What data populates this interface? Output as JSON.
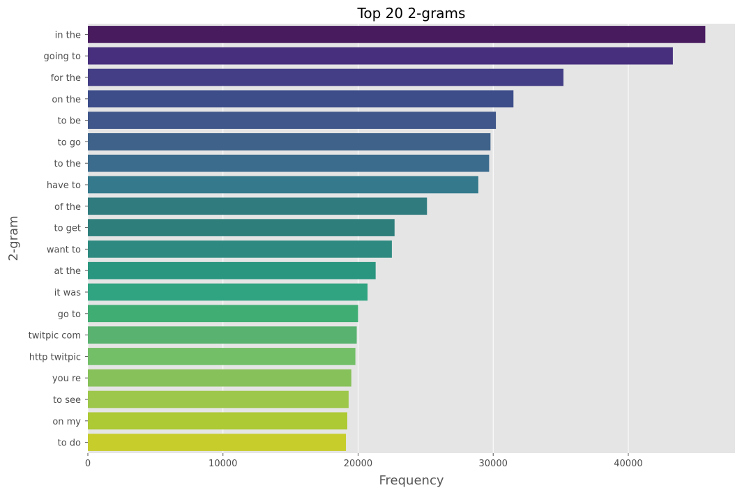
{
  "chart_data": {
    "type": "bar",
    "orientation": "horizontal",
    "title": "Top 20 2-grams",
    "xlabel": "Frequency",
    "ylabel": "2-gram",
    "categories": [
      "in the",
      "going to",
      "for the",
      "on the",
      "to be",
      "to go",
      "to the",
      "have to",
      "of the",
      "to get",
      "want to",
      "at the",
      "it was",
      "go to",
      "twitpic com",
      "http twitpic",
      "you re",
      "to see",
      "on my",
      "to do"
    ],
    "values": [
      45700,
      43300,
      35200,
      31500,
      30200,
      29800,
      29700,
      28900,
      25100,
      22700,
      22500,
      21300,
      20700,
      20000,
      19900,
      19800,
      19500,
      19300,
      19200,
      19100
    ],
    "xlim": [
      0,
      47900
    ],
    "xticks": [
      0,
      10000,
      20000,
      30000,
      40000
    ],
    "xtick_labels": [
      "0",
      "10000",
      "20000",
      "30000",
      "40000"
    ],
    "grid": true,
    "palette": "viridis",
    "colors": [
      "#481b5f",
      "#472f7d",
      "#433e85",
      "#3d4d8a",
      "#3f578a",
      "#3e628a",
      "#3b6b8d",
      "#347a8c",
      "#2f7b7e",
      "#2e7f7c",
      "#2e8a80",
      "#2a967f",
      "#30a481",
      "#40ad73",
      "#59b26f",
      "#73bf67",
      "#87c159",
      "#9dc74a",
      "#adc933",
      "#c7cd2b"
    ],
    "background": "#e5e5e5"
  }
}
